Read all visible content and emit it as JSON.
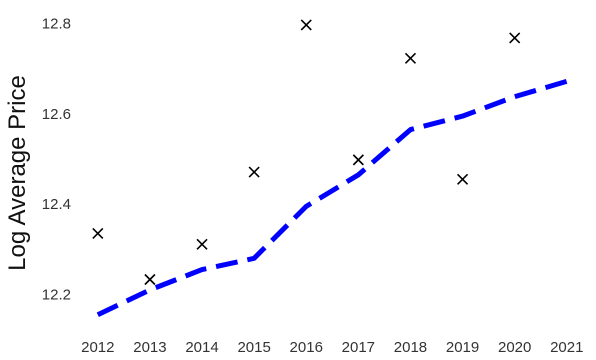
{
  "chart_data": {
    "type": "line",
    "title": "",
    "xlabel": "",
    "ylabel": "Log Average Price",
    "x_ticks": [
      2012,
      2013,
      2014,
      2015,
      2016,
      2017,
      2018,
      2019,
      2020,
      2021
    ],
    "y_ticks": [
      "12.2",
      "12.4",
      "12.6",
      "12.8"
    ],
    "xlim": [
      2011.85,
      2021.1
    ],
    "ylim": [
      12.13,
      12.83
    ],
    "grid": false,
    "legend": "none",
    "series": [
      {
        "style": "markers-x",
        "color": "#000000",
        "x": [
          2012,
          2013,
          2014,
          2015,
          2016,
          2017,
          2018,
          2019,
          2020
        ],
        "y": [
          12.335,
          12.233,
          12.311,
          12.471,
          12.797,
          12.498,
          12.723,
          12.455,
          12.768
        ]
      },
      {
        "style": "dashed-line",
        "color": "#0000ff",
        "x": [
          2012,
          2013,
          2014,
          2015,
          2016,
          2017,
          2018,
          2019,
          2020,
          2021
        ],
        "y": [
          12.155,
          12.21,
          12.255,
          12.28,
          12.395,
          12.465,
          12.565,
          12.595,
          12.638,
          12.672
        ]
      }
    ]
  }
}
